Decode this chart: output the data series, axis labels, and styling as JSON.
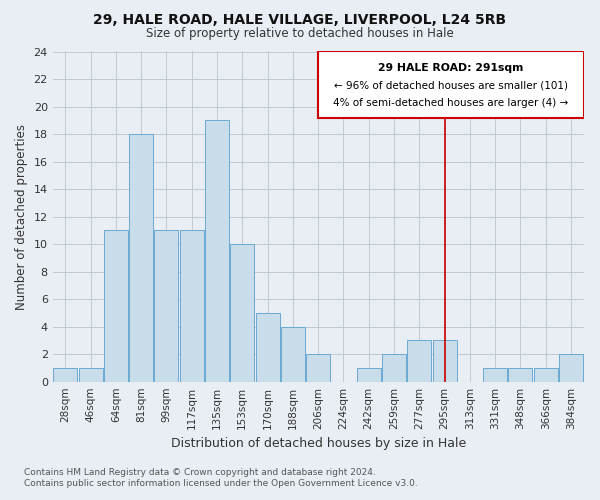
{
  "title1": "29, HALE ROAD, HALE VILLAGE, LIVERPOOL, L24 5RB",
  "title2": "Size of property relative to detached houses in Hale",
  "xlabel": "Distribution of detached houses by size in Hale",
  "ylabel": "Number of detached properties",
  "bar_labels": [
    "28sqm",
    "46sqm",
    "64sqm",
    "81sqm",
    "99sqm",
    "117sqm",
    "135sqm",
    "153sqm",
    "170sqm",
    "188sqm",
    "206sqm",
    "224sqm",
    "242sqm",
    "259sqm",
    "277sqm",
    "295sqm",
    "313sqm",
    "331sqm",
    "348sqm",
    "366sqm",
    "384sqm"
  ],
  "bar_heights": [
    1,
    1,
    11,
    18,
    11,
    11,
    19,
    10,
    5,
    4,
    2,
    0,
    1,
    2,
    3,
    3,
    0,
    1,
    1,
    1,
    2
  ],
  "bar_color": "#c9dcea",
  "bar_edge_color": "#6aaad4",
  "vline_index": 15,
  "vline_color": "#cc0000",
  "annotation_title": "29 HALE ROAD: 291sqm",
  "annotation_line1": "← 96% of detached houses are smaller (101)",
  "annotation_line2": "4% of semi-detached houses are larger (4) →",
  "annotation_box_color": "#cc0000",
  "ylim": [
    0,
    24
  ],
  "yticks": [
    0,
    2,
    4,
    6,
    8,
    10,
    12,
    14,
    16,
    18,
    20,
    22,
    24
  ],
  "footnote1": "Contains HM Land Registry data © Crown copyright and database right 2024.",
  "footnote2": "Contains public sector information licensed under the Open Government Licence v3.0.",
  "background_color": "#e8eef4",
  "plot_bg_color": "#e8eef4",
  "grid_color": "#c0c8d0"
}
